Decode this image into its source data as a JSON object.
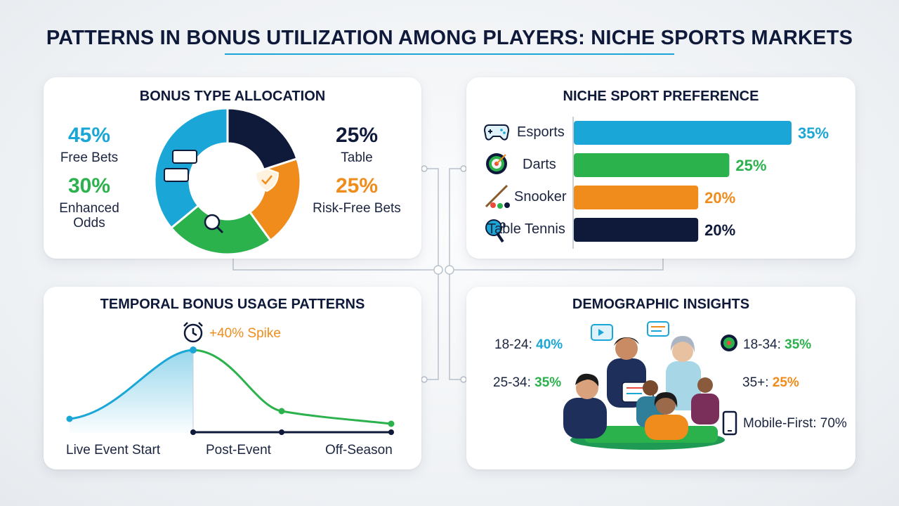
{
  "title": "PATTERNS IN BONUS UTILIZATION AMONG PLAYERS: NICHE SPORTS MARKETS",
  "colors": {
    "blue": "#1aa6d6",
    "green": "#2bb24c",
    "orange": "#ef8c1c",
    "navy": "#0f1a3a"
  },
  "bonus": {
    "title": "BONUS TYPE ALLOCATION",
    "items": [
      {
        "pct": "45%",
        "label": "Free Bets"
      },
      {
        "pct": "30%",
        "label": "Enhanced Odds"
      },
      {
        "pct": "25%",
        "label": "Table"
      },
      {
        "pct": "25%",
        "label": "Risk-Free Bets"
      }
    ]
  },
  "niche": {
    "title": "NICHE SPORT PREFERENCE",
    "bars": [
      {
        "label": "Esports",
        "value": "35%"
      },
      {
        "label": "Darts",
        "value": "25%"
      },
      {
        "label": "Snooker",
        "value": "20%"
      },
      {
        "label": "Table Tennis",
        "value": "20%"
      }
    ]
  },
  "temporal": {
    "title": "TEMPORAL BONUS USAGE PATTERNS",
    "spike": "+40% Spike",
    "axis": [
      "Live Event Start",
      "Post-Event",
      "Off-Season"
    ]
  },
  "demographic": {
    "title": "DEMOGRAPHIC INSIGHTS",
    "left": [
      {
        "age": "18-24:",
        "pct": "40%"
      },
      {
        "age": "25-34:",
        "pct": "35%"
      }
    ],
    "right": [
      {
        "age": "18-34:",
        "pct": "35%"
      },
      {
        "age": "35+:",
        "pct": "25%"
      }
    ],
    "mobile": "Mobile-First: 70%"
  },
  "chart_data": [
    {
      "type": "pie",
      "title": "BONUS TYPE ALLOCATION",
      "categories": [
        "Free Bets",
        "Enhanced Odds",
        "Table",
        "Risk-Free Bets"
      ],
      "values": [
        45,
        30,
        25,
        25
      ],
      "colors": [
        "#1aa6d6",
        "#2bb24c",
        "#0f1a3a",
        "#ef8c1c"
      ]
    },
    {
      "type": "bar",
      "title": "NICHE SPORT PREFERENCE",
      "categories": [
        "Esports",
        "Darts",
        "Snooker",
        "Table Tennis"
      ],
      "values": [
        35,
        25,
        20,
        20
      ],
      "colors": [
        "#1aa6d6",
        "#2bb24c",
        "#ef8c1c",
        "#0f1a3a"
      ]
    },
    {
      "type": "line",
      "title": "TEMPORAL BONUS USAGE PATTERNS",
      "categories": [
        "Live Event Start",
        "Post-Event",
        "Off-Season"
      ],
      "annotation": "+40% Spike"
    }
  ]
}
